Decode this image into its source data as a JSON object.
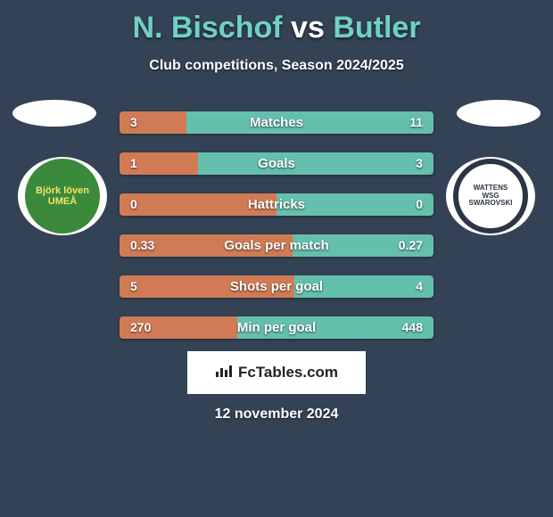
{
  "background_color": "#344255",
  "title": {
    "player1": "N. Bischof",
    "vs": "vs",
    "player2": "Butler",
    "player_color": "#6fd0c6",
    "vs_color": "#ffffff",
    "fontsize": 34
  },
  "subtitle": "Club competitions, Season 2024/2025",
  "avatar_placeholder_color": "#ffffff",
  "club_left": {
    "bg": "#3b8a3b",
    "text": "Björk löven UMEÅ",
    "text_color": "#f2e36b"
  },
  "club_right": {
    "bg": "#2b3545",
    "inner_bg": "#ffffff",
    "text": "WATTENS WSG SWAROVSKI",
    "text_color": "#2b3545"
  },
  "stats": {
    "bar_left_color": "#d07b56",
    "bar_right_color": "#65bfad",
    "fontsize": 15,
    "rows": [
      {
        "label": "Matches",
        "left": "3",
        "right": "11",
        "left_width_pct": 21.4
      },
      {
        "label": "Goals",
        "left": "1",
        "right": "3",
        "left_width_pct": 25.0
      },
      {
        "label": "Hattricks",
        "left": "0",
        "right": "0",
        "left_width_pct": 50.0
      },
      {
        "label": "Goals per match",
        "left": "0.33",
        "right": "0.27",
        "left_width_pct": 55.0
      },
      {
        "label": "Shots per goal",
        "left": "5",
        "right": "4",
        "left_width_pct": 55.6
      },
      {
        "label": "Min per goal",
        "left": "270",
        "right": "448",
        "left_width_pct": 37.6
      }
    ]
  },
  "watermark": {
    "text": "FcTables.com",
    "bg": "#ffffff",
    "text_color": "#222222"
  },
  "date": "12 november 2024"
}
